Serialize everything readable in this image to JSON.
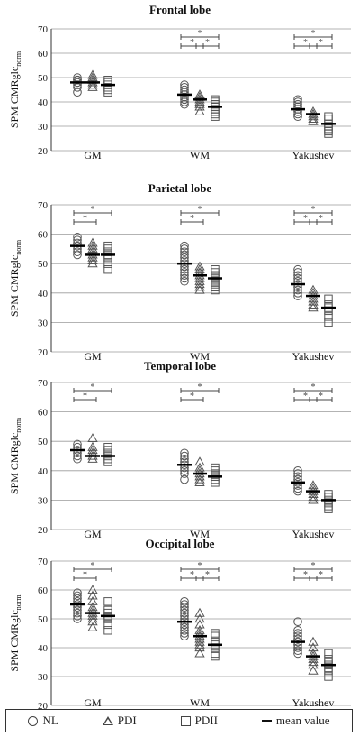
{
  "ylabel": "SPM CMRglc",
  "ylabel_sub": "norm",
  "legend": [
    {
      "symbol": "circle",
      "label": "NL"
    },
    {
      "symbol": "triangle",
      "label": "PDI"
    },
    {
      "symbol": "square",
      "label": "PDII"
    },
    {
      "symbol": "line",
      "label": "mean value"
    }
  ],
  "sig_marker": "*",
  "chart_data": [
    {
      "type": "scatter",
      "title": "Frontal lobe",
      "ylabel": "SPM CMRglc norm",
      "ylim": [
        20,
        70
      ],
      "yticks": [
        20,
        30,
        40,
        50,
        60,
        70
      ],
      "grid": true,
      "categories": [
        "GM",
        "WM",
        "Yakushev"
      ],
      "series": [
        {
          "name": "NL",
          "marker": "circle",
          "points": [
            [
              44,
              46,
              47,
              48,
              48,
              49,
              49,
              50
            ],
            [
              39,
              40,
              41,
              42,
              43,
              44,
              45,
              46,
              47
            ],
            [
              34,
              35,
              36,
              37,
              38,
              39,
              40,
              41
            ]
          ],
          "means": [
            48,
            43,
            37
          ]
        },
        {
          "name": "PDI",
          "marker": "triangle",
          "points": [
            [
              46,
              47,
              48,
              49,
              50,
              51
            ],
            [
              36,
              38,
              39,
              40,
              41,
              42,
              43
            ],
            [
              32,
              33,
              34,
              35,
              36
            ]
          ],
          "means": [
            48,
            41,
            35
          ]
        },
        {
          "name": "PDII",
          "marker": "square",
          "points": [
            [
              44,
              45,
              46,
              47,
              48,
              49
            ],
            [
              34,
              35,
              36,
              37,
              38,
              39,
              40,
              41
            ],
            [
              27,
              28,
              29,
              30,
              31,
              33,
              34
            ]
          ],
          "means": [
            47,
            38,
            31
          ]
        }
      ],
      "significance": [
        {
          "category": "WM",
          "from": "NL",
          "to": "PDI"
        },
        {
          "category": "WM",
          "from": "NL",
          "to": "PDII"
        },
        {
          "category": "WM",
          "from": "PDI",
          "to": "PDII"
        },
        {
          "category": "Yakushev",
          "from": "NL",
          "to": "PDI"
        },
        {
          "category": "Yakushev",
          "from": "NL",
          "to": "PDII"
        },
        {
          "category": "Yakushev",
          "from": "PDI",
          "to": "PDII"
        }
      ]
    },
    {
      "type": "scatter",
      "title": "Parietal lobe",
      "ylabel": "SPM CMRglc norm",
      "ylim": [
        20,
        70
      ],
      "yticks": [
        20,
        30,
        40,
        50,
        60,
        70
      ],
      "grid": true,
      "categories": [
        "GM",
        "WM",
        "Yakushev"
      ],
      "series": [
        {
          "name": "NL",
          "marker": "circle",
          "points": [
            [
              53,
              54,
              55,
              56,
              57,
              58,
              59
            ],
            [
              44,
              45,
              46,
              47,
              48,
              49,
              50,
              51,
              52,
              53,
              54,
              55,
              56
            ],
            [
              39,
              40,
              41,
              42,
              43,
              44,
              45,
              46,
              47,
              48
            ]
          ],
          "means": [
            56,
            50,
            43
          ]
        },
        {
          "name": "PDI",
          "marker": "triangle",
          "points": [
            [
              50,
              51,
              52,
              53,
              54,
              55,
              56,
              57
            ],
            [
              41,
              42,
              43,
              44,
              45,
              46,
              47,
              48,
              49
            ],
            [
              35,
              36,
              37,
              38,
              39,
              40,
              41
            ]
          ],
          "means": [
            53,
            46,
            39
          ]
        },
        {
          "name": "PDII",
          "marker": "square",
          "points": [
            [
              48,
              50,
              52,
              53,
              54,
              55,
              56
            ],
            [
              41,
              42,
              43,
              44,
              45,
              46,
              47,
              48
            ],
            [
              30,
              32,
              34,
              35,
              36,
              38
            ]
          ],
          "means": [
            53,
            45,
            35
          ]
        }
      ],
      "significance": [
        {
          "category": "GM",
          "from": "NL",
          "to": "PDI"
        },
        {
          "category": "GM",
          "from": "NL",
          "to": "PDII"
        },
        {
          "category": "WM",
          "from": "NL",
          "to": "PDI"
        },
        {
          "category": "WM",
          "from": "NL",
          "to": "PDII"
        },
        {
          "category": "Yakushev",
          "from": "NL",
          "to": "PDI"
        },
        {
          "category": "Yakushev",
          "from": "NL",
          "to": "PDII"
        },
        {
          "category": "Yakushev",
          "from": "PDI",
          "to": "PDII"
        }
      ]
    },
    {
      "type": "scatter",
      "title": "Temporal lobe",
      "ylabel": "SPM CMRglc norm",
      "ylim": [
        20,
        70
      ],
      "yticks": [
        20,
        30,
        40,
        50,
        60,
        70
      ],
      "grid": true,
      "categories": [
        "GM",
        "WM",
        "Yakushev"
      ],
      "series": [
        {
          "name": "NL",
          "marker": "circle",
          "points": [
            [
              44,
              45,
              46,
              47,
              48,
              49
            ],
            [
              37,
              39,
              40,
              41,
              42,
              43,
              44,
              45,
              46
            ],
            [
              33,
              34,
              35,
              36,
              37,
              38,
              39,
              40
            ]
          ],
          "means": [
            47,
            42,
            36
          ]
        },
        {
          "name": "PDI",
          "marker": "triangle",
          "points": [
            [
              44,
              45,
              46,
              47,
              48,
              51
            ],
            [
              36,
              37,
              38,
              39,
              40,
              41,
              43
            ],
            [
              30,
              31,
              32,
              33,
              34,
              35
            ]
          ],
          "means": [
            45,
            39,
            33
          ]
        },
        {
          "name": "PDII",
          "marker": "square",
          "points": [
            [
              43,
              44,
              45,
              46,
              47,
              48
            ],
            [
              36,
              37,
              38,
              39,
              40,
              41
            ],
            [
              27,
              28,
              29,
              30,
              31,
              32
            ]
          ],
          "means": [
            45,
            38,
            30
          ]
        }
      ],
      "significance": [
        {
          "category": "GM",
          "from": "NL",
          "to": "PDI"
        },
        {
          "category": "GM",
          "from": "NL",
          "to": "PDII"
        },
        {
          "category": "WM",
          "from": "NL",
          "to": "PDI"
        },
        {
          "category": "WM",
          "from": "NL",
          "to": "PDII"
        },
        {
          "category": "Yakushev",
          "from": "NL",
          "to": "PDI"
        },
        {
          "category": "Yakushev",
          "from": "NL",
          "to": "PDII"
        },
        {
          "category": "Yakushev",
          "from": "PDI",
          "to": "PDII"
        }
      ]
    },
    {
      "type": "scatter",
      "title": "Occipital lobe",
      "ylabel": "SPM CMRglc norm",
      "ylim": [
        20,
        70
      ],
      "yticks": [
        20,
        30,
        40,
        50,
        60,
        70
      ],
      "grid": true,
      "categories": [
        "GM",
        "WM",
        "Yakushev"
      ],
      "series": [
        {
          "name": "NL",
          "marker": "circle",
          "points": [
            [
              50,
              51,
              52,
              53,
              54,
              55,
              56,
              57,
              58,
              59
            ],
            [
              44,
              45,
              46,
              47,
              48,
              49,
              50,
              51,
              52,
              53,
              54,
              55,
              56
            ],
            [
              38,
              39,
              40,
              41,
              42,
              43,
              44,
              45,
              46,
              49
            ]
          ],
          "means": [
            55,
            49,
            42
          ]
        },
        {
          "name": "PDI",
          "marker": "triangle",
          "points": [
            [
              47,
              49,
              50,
              51,
              52,
              53,
              54,
              56,
              58,
              60
            ],
            [
              38,
              40,
              41,
              42,
              43,
              44,
              45,
              46,
              48,
              50,
              52
            ],
            [
              32,
              34,
              35,
              36,
              37,
              38,
              40,
              42
            ]
          ],
          "means": [
            52,
            44,
            37
          ]
        },
        {
          "name": "PDII",
          "marker": "square",
          "points": [
            [
              46,
              48,
              50,
              51,
              52,
              53,
              56
            ],
            [
              37,
              38,
              40,
              41,
              42,
              44,
              45
            ],
            [
              30,
              32,
              33,
              34,
              35,
              36,
              38
            ]
          ],
          "means": [
            51,
            41,
            34
          ]
        }
      ],
      "significance": [
        {
          "category": "GM",
          "from": "NL",
          "to": "PDI"
        },
        {
          "category": "GM",
          "from": "NL",
          "to": "PDII"
        },
        {
          "category": "WM",
          "from": "NL",
          "to": "PDI"
        },
        {
          "category": "WM",
          "from": "NL",
          "to": "PDII"
        },
        {
          "category": "WM",
          "from": "PDI",
          "to": "PDII"
        },
        {
          "category": "Yakushev",
          "from": "NL",
          "to": "PDI"
        },
        {
          "category": "Yakushev",
          "from": "NL",
          "to": "PDII"
        },
        {
          "category": "Yakushev",
          "from": "PDI",
          "to": "PDII"
        }
      ]
    }
  ]
}
